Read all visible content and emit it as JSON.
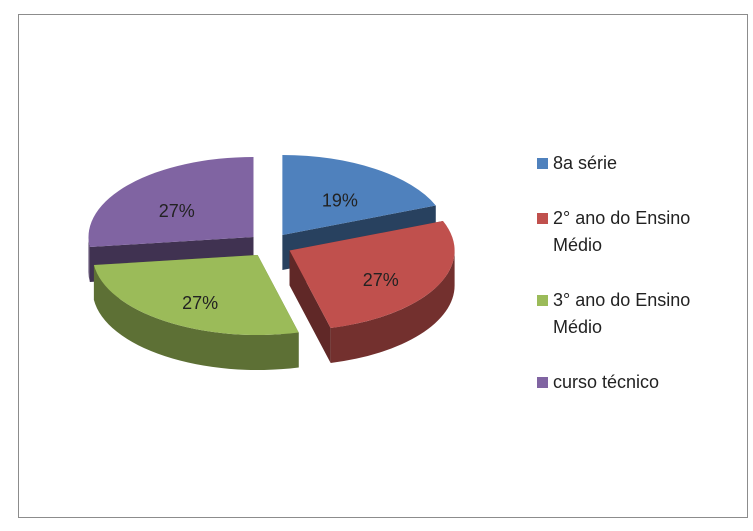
{
  "chart_data": {
    "type": "pie",
    "three_d": true,
    "exploded": true,
    "series": [
      {
        "name": "8a série",
        "color": "#4f81bd",
        "values": [
          19
        ],
        "value_labels": [
          "19%"
        ]
      },
      {
        "name": "2° ano do Ensino Médio",
        "color": "#c0504d",
        "values": [
          27
        ],
        "value_labels": [
          "27%"
        ]
      },
      {
        "name": "3° ano do Ensino Médio",
        "color": "#9bbb59",
        "values": [
          27
        ],
        "value_labels": [
          "27%"
        ]
      },
      {
        "name": "curso técnico",
        "color": "#8064a2",
        "values": [
          27
        ],
        "value_labels": [
          "27%"
        ]
      }
    ],
    "legend": "right"
  }
}
